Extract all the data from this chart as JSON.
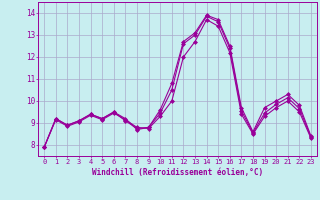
{
  "title": "",
  "xlabel": "Windchill (Refroidissement éolien,°C)",
  "ylabel": "",
  "background_color": "#c8eef0",
  "grid_color": "#aaaacc",
  "line_color": "#990099",
  "x": [
    0,
    1,
    2,
    3,
    4,
    5,
    6,
    7,
    8,
    9,
    10,
    11,
    12,
    13,
    14,
    15,
    16,
    17,
    18,
    19,
    20,
    21,
    22,
    23
  ],
  "line1": [
    7.9,
    9.2,
    8.9,
    9.1,
    9.4,
    9.2,
    9.5,
    9.2,
    8.7,
    8.8,
    9.6,
    10.8,
    12.7,
    13.1,
    13.9,
    13.7,
    12.5,
    9.7,
    8.6,
    9.7,
    10.0,
    10.3,
    9.8,
    8.4
  ],
  "line2": [
    7.9,
    9.2,
    8.9,
    9.1,
    9.4,
    9.2,
    9.5,
    9.1,
    8.75,
    8.8,
    9.45,
    10.5,
    12.6,
    13.0,
    13.85,
    13.6,
    12.4,
    9.55,
    8.55,
    9.45,
    9.85,
    10.15,
    9.65,
    8.35
  ],
  "line3": [
    7.9,
    9.15,
    8.85,
    9.05,
    9.35,
    9.15,
    9.45,
    9.15,
    8.8,
    8.75,
    9.3,
    10.0,
    12.0,
    12.7,
    13.7,
    13.4,
    12.2,
    9.4,
    8.5,
    9.3,
    9.7,
    10.0,
    9.5,
    8.3
  ],
  "ylim": [
    7.5,
    14.5
  ],
  "xlim": [
    -0.5,
    23.5
  ],
  "yticks": [
    8,
    9,
    10,
    11,
    12,
    13,
    14
  ],
  "xticks": [
    0,
    1,
    2,
    3,
    4,
    5,
    6,
    7,
    8,
    9,
    10,
    11,
    12,
    13,
    14,
    15,
    16,
    17,
    18,
    19,
    20,
    21,
    22,
    23
  ],
  "marker": "D",
  "markersize": 2,
  "linewidth": 0.8,
  "font_size": 5.5,
  "xlabel_fontsize": 5.5
}
